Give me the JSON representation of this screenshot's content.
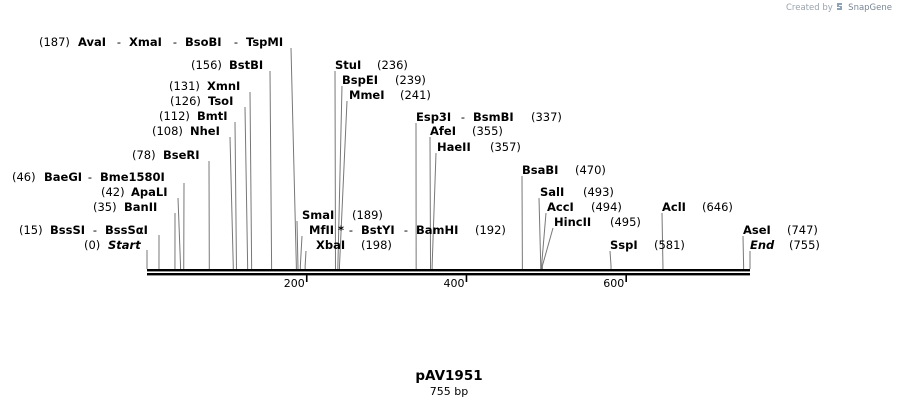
{
  "credit": {
    "prefix": "Created by",
    "brand": "SnapGene"
  },
  "plasmid": {
    "name": "pAV1951",
    "size_label": "755 bp",
    "length": 755
  },
  "ticks": [
    {
      "pos": 200,
      "label": "200"
    },
    {
      "pos": 400,
      "label": "400"
    },
    {
      "pos": 600,
      "label": "600"
    }
  ],
  "sites": [
    {
      "pos": 0,
      "label_pos": "(0)",
      "names": [
        "Start"
      ],
      "italic": true
    },
    {
      "pos": 15,
      "label_pos": "(15)",
      "names": [
        "BssSI",
        "BssSαI"
      ]
    },
    {
      "pos": 35,
      "label_pos": "(35)",
      "names": [
        "BanII"
      ]
    },
    {
      "pos": 42,
      "label_pos": "(42)",
      "names": [
        "ApaLI"
      ]
    },
    {
      "pos": 46,
      "label_pos": "(46)",
      "names": [
        "BaeGI",
        "Bme1580I"
      ]
    },
    {
      "pos": 78,
      "label_pos": "(78)",
      "names": [
        "BseRI"
      ]
    },
    {
      "pos": 108,
      "label_pos": "(108)",
      "names": [
        "NheI"
      ]
    },
    {
      "pos": 112,
      "label_pos": "(112)",
      "names": [
        "BmtI"
      ]
    },
    {
      "pos": 126,
      "label_pos": "(126)",
      "names": [
        "TsoI"
      ]
    },
    {
      "pos": 131,
      "label_pos": "(131)",
      "names": [
        "XmnI"
      ]
    },
    {
      "pos": 156,
      "label_pos": "(156)",
      "names": [
        "BstBI"
      ]
    },
    {
      "pos": 187,
      "label_pos": "(187)",
      "names": [
        "AvaI",
        "XmaI",
        "BsoBI",
        "TspMI"
      ]
    },
    {
      "pos": 189,
      "label_pos": "(189)",
      "names": [
        "SmaI"
      ]
    },
    {
      "pos": 192,
      "label_pos": "(192)",
      "names": [
        "MfII *",
        "BstYI",
        "BamHI"
      ]
    },
    {
      "pos": 198,
      "label_pos": "(198)",
      "names": [
        "XbaI"
      ]
    },
    {
      "pos": 236,
      "label_pos": "(236)",
      "names": [
        "StuI"
      ]
    },
    {
      "pos": 239,
      "label_pos": "(239)",
      "names": [
        "BspEI"
      ]
    },
    {
      "pos": 241,
      "label_pos": "(241)",
      "names": [
        "MmeI"
      ]
    },
    {
      "pos": 337,
      "label_pos": "(337)",
      "names": [
        "Esp3I",
        "BsmBI"
      ]
    },
    {
      "pos": 355,
      "label_pos": "(355)",
      "names": [
        "AfeI"
      ]
    },
    {
      "pos": 357,
      "label_pos": "(357)",
      "names": [
        "HaeII"
      ]
    },
    {
      "pos": 470,
      "label_pos": "(470)",
      "names": [
        "BsaBI"
      ]
    },
    {
      "pos": 493,
      "label_pos": "(493)",
      "names": [
        "SalI"
      ]
    },
    {
      "pos": 494,
      "label_pos": "(494)",
      "names": [
        "AccI"
      ]
    },
    {
      "pos": 495,
      "label_pos": "(495)",
      "names": [
        "HincII"
      ]
    },
    {
      "pos": 581,
      "label_pos": "(581)",
      "names": [
        "SspI"
      ]
    },
    {
      "pos": 646,
      "label_pos": "(646)",
      "names": [
        "AclI"
      ]
    },
    {
      "pos": 747,
      "label_pos": "(747)",
      "names": [
        "AseI"
      ]
    },
    {
      "pos": 755,
      "label_pos": "(755)",
      "names": [
        "End"
      ],
      "italic": true
    }
  ],
  "colors": {
    "backbone": "#000000",
    "site_line": "#777777",
    "credit": "#9aa3ad",
    "brand": "#7a8694"
  }
}
